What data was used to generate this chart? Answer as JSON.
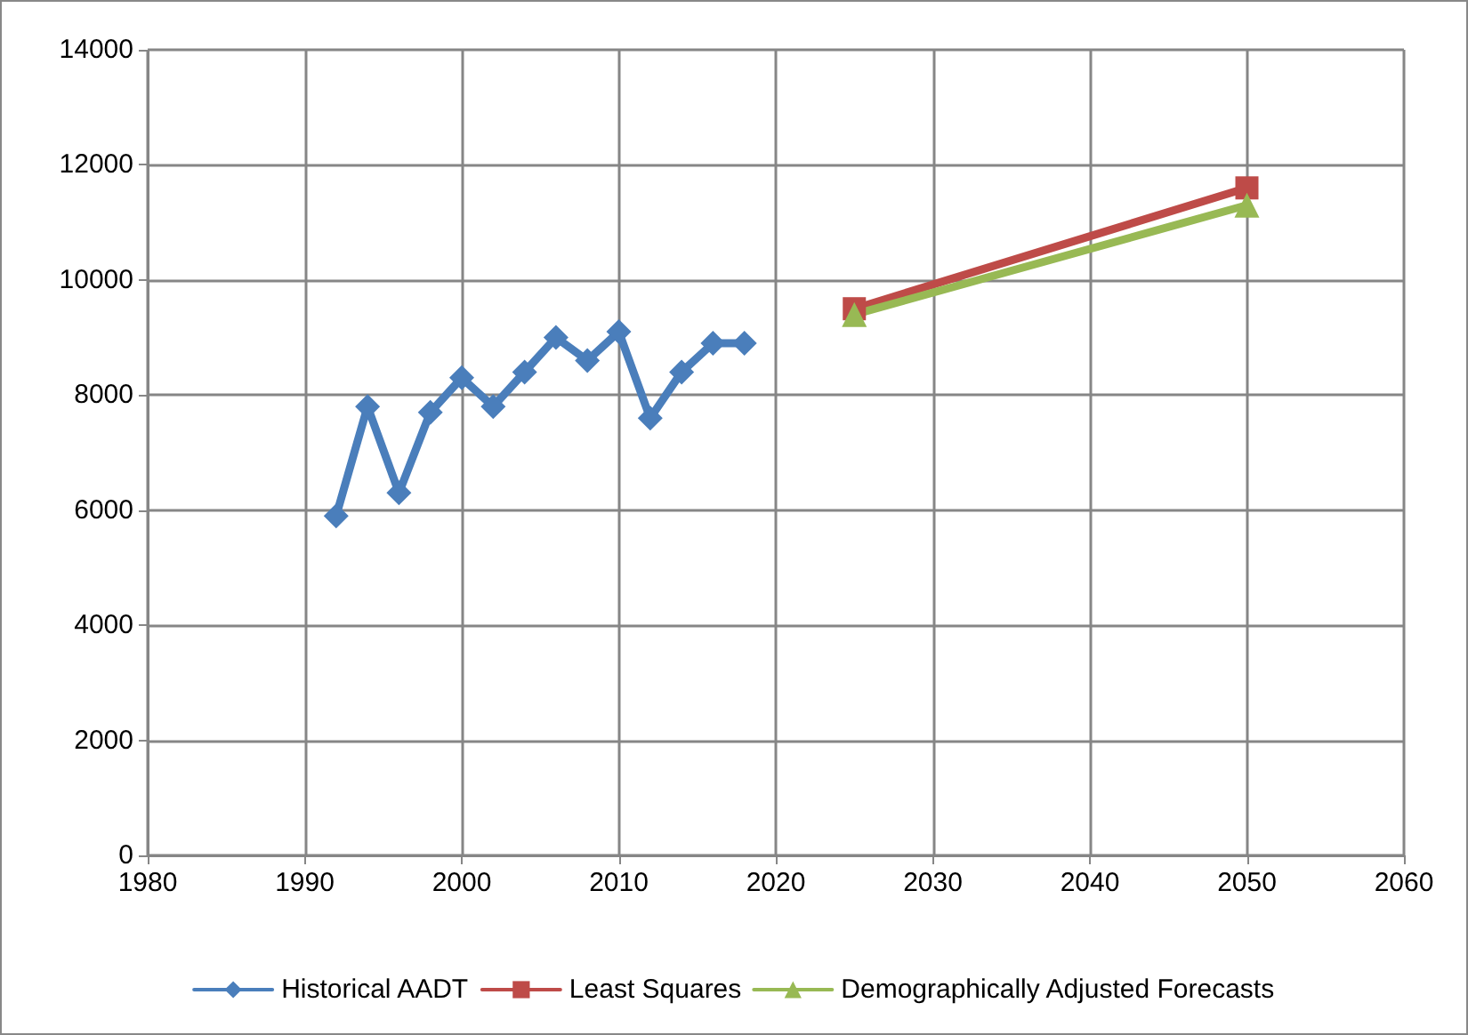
{
  "chart_data": {
    "type": "line",
    "xlim": [
      1980,
      2060
    ],
    "xticks": [
      1980,
      1990,
      2000,
      2010,
      2020,
      2030,
      2040,
      2050,
      2060
    ],
    "ylim": [
      0,
      14000
    ],
    "yticks": [
      0,
      2000,
      4000,
      6000,
      8000,
      10000,
      12000,
      14000
    ],
    "grid": true,
    "legend": "bottom",
    "line_style": "solid",
    "series": [
      {
        "name": "Historical AADT",
        "color": "#4a7ebb",
        "marker": "diamond",
        "x": [
          1992,
          1994,
          1996,
          1998,
          2000,
          2002,
          2004,
          2006,
          2008,
          2010,
          2012,
          2014,
          2016,
          2018
        ],
        "values": [
          5900,
          7800,
          6300,
          7700,
          8300,
          7800,
          8400,
          9000,
          8600,
          9100,
          7600,
          8400,
          8900,
          8900
        ]
      },
      {
        "name": "Least Squares",
        "color": "#be4b48",
        "marker": "square",
        "x": [
          2025,
          2050
        ],
        "values": [
          9500,
          11600
        ]
      },
      {
        "name": "Demographically Adjusted Forecasts",
        "color": "#98b954",
        "marker": "triangle",
        "x": [
          2025,
          2050
        ],
        "values": [
          9400,
          11300
        ]
      }
    ]
  }
}
